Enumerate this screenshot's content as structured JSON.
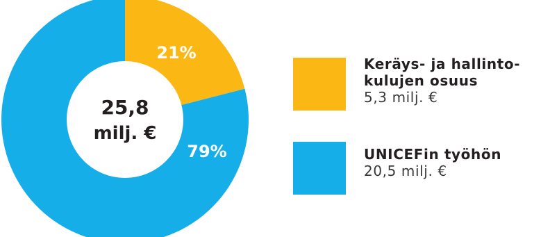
{
  "chart_data": {
    "type": "pie",
    "variant": "donut",
    "center_label": [
      "25,8",
      "milj. €"
    ],
    "slices": [
      {
        "pct_label": "21%",
        "value": 21,
        "label_lines": [
          "Keräys- ja hallinto-",
          "kulujen osuus"
        ],
        "amount": "5,3 milj. €",
        "color": "#fbb814"
      },
      {
        "pct_label": "79%",
        "value": 79,
        "label_lines": [
          "UNICEFin työhön"
        ],
        "amount": "20,5 milj. €",
        "color": "#16aee8"
      }
    ],
    "legend_position": "right"
  }
}
